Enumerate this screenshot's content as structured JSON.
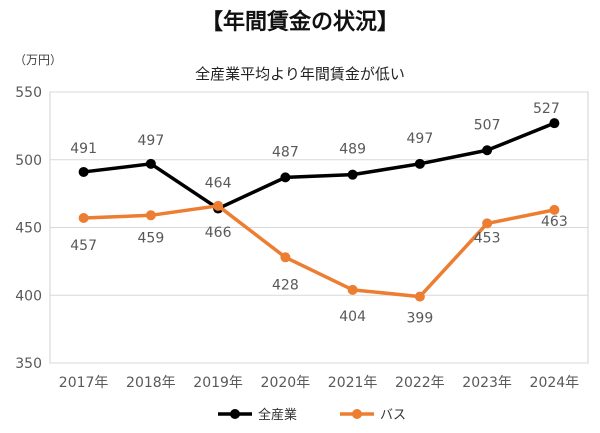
{
  "page": {
    "heading": "【年間賃金の状況】"
  },
  "chart_data": {
    "type": "line",
    "title": "全産業平均より年間賃金が低い",
    "unit_label": "（万円）",
    "xlabel": "",
    "ylabel": "",
    "categories": [
      "2017年",
      "2018年",
      "2019年",
      "2020年",
      "2021年",
      "2022年",
      "2023年",
      "2024年"
    ],
    "ylim": [
      350,
      550
    ],
    "yticks": [
      350,
      400,
      450,
      500,
      550
    ],
    "grid": true,
    "legend": "bottom",
    "series": [
      {
        "name": "全産業",
        "color": "#000000",
        "values": [
          491,
          497,
          464,
          487,
          489,
          497,
          507,
          527
        ]
      },
      {
        "name": "バス",
        "color": "#ED7D31",
        "values": [
          457,
          459,
          466,
          428,
          404,
          399,
          453,
          463
        ]
      }
    ]
  }
}
